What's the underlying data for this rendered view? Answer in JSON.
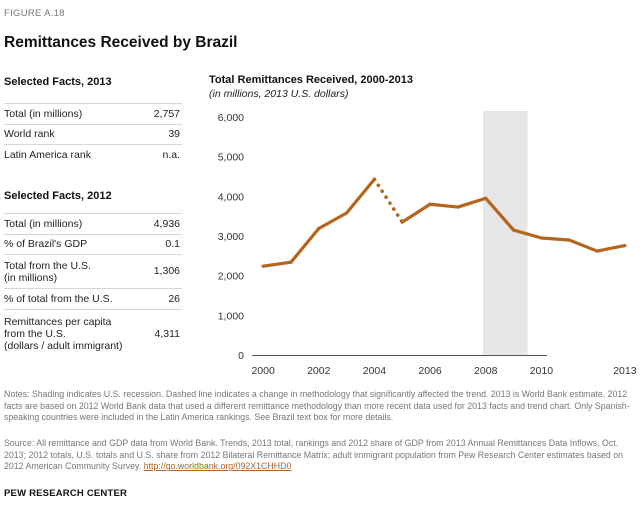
{
  "figure_label": "FIGURE A.18",
  "title": "Remittances Received by Brazil",
  "facts_2013": {
    "heading": "Selected Facts, 2013",
    "rows": [
      {
        "label": "Total (in millions)",
        "value": "2,757"
      },
      {
        "label": "World rank",
        "value": "39"
      },
      {
        "label": "Latin America rank",
        "value": "n.a."
      }
    ]
  },
  "facts_2012": {
    "heading": "Selected Facts, 2012",
    "rows": [
      {
        "label": "Total (in millions)",
        "value": "4,936"
      },
      {
        "label": "% of Brazil's GDP",
        "value": "0.1"
      },
      {
        "label": "Total from the U.S.\n(in millions)",
        "value": "1,306"
      },
      {
        "label": "% of total from the U.S.",
        "value": "26"
      },
      {
        "label": "Remittances per capita\nfrom the U.S.\n(dollars / adult immigrant)",
        "value": "4,311"
      }
    ]
  },
  "chart_data": {
    "type": "line",
    "title": "Total Remittances Received, 2000-2013",
    "subtitle": "(in millions, 2013 U.S. dollars)",
    "x": [
      2000,
      2001,
      2002,
      2003,
      2004,
      2005,
      2006,
      2007,
      2008,
      2009,
      2010,
      2011,
      2012,
      2013
    ],
    "series": [
      {
        "name": "Total remittances",
        "values": [
          2240,
          2340,
          3190,
          3580,
          4430,
          3350,
          3800,
          3730,
          3950,
          3150,
          2950,
          2900,
          2620,
          2760
        ]
      }
    ],
    "dashed_segment": [
      2004,
      2005
    ],
    "recession_shading": [
      2007.9,
      2009.5
    ],
    "ylim": [
      0,
      6000
    ],
    "yticks": [
      0,
      1000,
      2000,
      3000,
      4000,
      5000,
      6000
    ],
    "ytick_labels": [
      "0",
      "1,000",
      "2,000",
      "3,000",
      "4,000",
      "5,000",
      "6,000"
    ],
    "xlim": [
      1999.6,
      2013.4
    ],
    "xtick_labels": [
      "2000",
      "2002",
      "2004",
      "2006",
      "2008",
      "2010",
      "2013"
    ],
    "line_color": "#b5651d",
    "shade_color": "#e6e6e6"
  },
  "notes": "Notes: Shading indicates U.S. recession. Dashed line indicates a change in methodology that significantly affected the trend. 2013 is World Bank estimate. 2012 facts are based on 2012 World Bank data that used a different remittance methodology than more recent data used for 2013 facts and trend chart. Only Spanish-speaking countries were included in the Latin America rankings. See Brazil text box for more details.",
  "source_text": "Source: All remittance and GDP data from World Bank. Trends, 2013 total, rankings and 2012 share of GDP from 2013 Annual Remittances Data Inflows, Oct. 2013; 2012 totals, U.S. totals and U.S. share from 2012 Bilateral Remittance Matrix; adult immigrant population from Pew Research Center estimates based on 2012 American Community Survey.",
  "source_link": "http://go.worldbank.org/092X1CHHD0",
  "footer": "PEW RESEARCH CENTER"
}
